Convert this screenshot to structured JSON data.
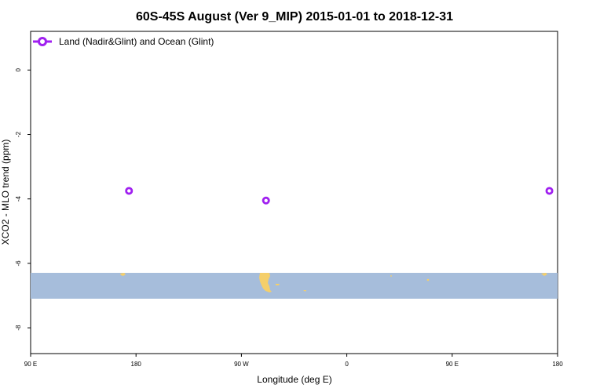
{
  "chart_data": {
    "type": "scatter",
    "title": "60S-45S August (Ver 9_MIP)   2015-01-01 to 2018-12-31",
    "xlabel": "Longitude (deg E)",
    "ylabel": "XCO2 - MLO trend (ppm)",
    "x_ticks": [
      {
        "value": 90,
        "label": "90 E"
      },
      {
        "value": 180,
        "label": "180"
      },
      {
        "value": 270,
        "label": "90 W"
      },
      {
        "value": 360,
        "label": "0"
      },
      {
        "value": 450,
        "label": "90 E"
      },
      {
        "value": 540,
        "label": "180"
      }
    ],
    "y_ticks": [
      {
        "value": 0,
        "label": "0"
      },
      {
        "value": -2,
        "label": "-2"
      },
      {
        "value": -4,
        "label": "-4"
      },
      {
        "value": -6,
        "label": "-6"
      },
      {
        "value": -8,
        "label": "-8"
      }
    ],
    "xlim": [
      90,
      540
    ],
    "ylim": [
      -8.8,
      1.2
    ],
    "series": [
      {
        "name": "Land (Nadir&Glint) and Ocean (Glint)",
        "color": "#a020f0",
        "marker": "open-circle",
        "x": [
          174,
          291,
          533
        ],
        "y": [
          -3.75,
          -4.05,
          -3.75
        ]
      }
    ],
    "legend_position": "top-left",
    "grid": false,
    "map_strip": {
      "ocean_color": "#a6bddb",
      "land_color": "#f5cf6a",
      "lat_range": [
        "60S",
        "45S"
      ]
    }
  }
}
